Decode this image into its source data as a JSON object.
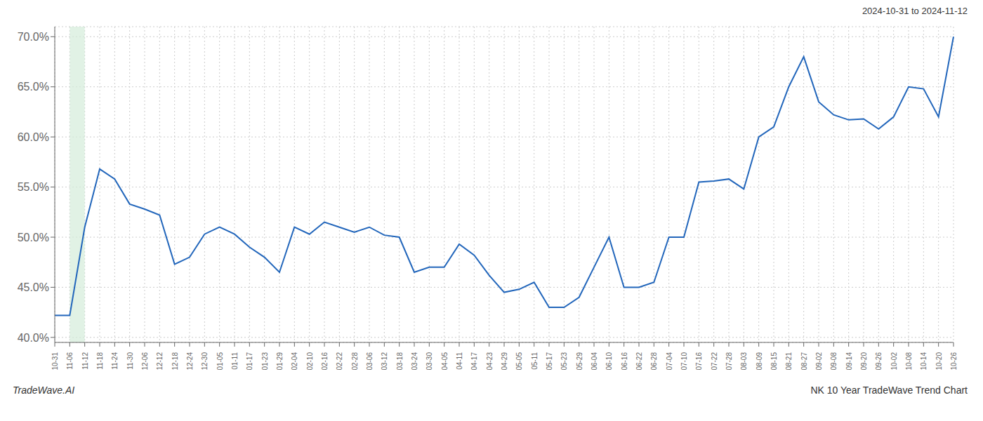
{
  "chart_data": {
    "type": "line",
    "title": "NK 10 Year TradeWave Trend Chart",
    "subtitle": "2024-10-31 to 2024-11-12",
    "annotations": [
      "TradeWave.AI"
    ],
    "categories": [
      "10-31",
      "11-06",
      "11-12",
      "11-18",
      "11-24",
      "11-30",
      "12-06",
      "12-12",
      "12-18",
      "12-24",
      "12-30",
      "01-05",
      "01-11",
      "01-17",
      "01-23",
      "01-29",
      "02-04",
      "02-10",
      "02-16",
      "02-22",
      "02-28",
      "03-06",
      "03-12",
      "03-18",
      "03-24",
      "03-30",
      "04-05",
      "04-11",
      "04-17",
      "04-23",
      "04-29",
      "05-05",
      "05-11",
      "05-17",
      "05-23",
      "05-29",
      "06-04",
      "06-10",
      "06-16",
      "06-22",
      "06-28",
      "07-04",
      "07-10",
      "07-16",
      "07-22",
      "07-28",
      "08-03",
      "08-09",
      "08-15",
      "08-21",
      "08-27",
      "09-02",
      "09-08",
      "09-14",
      "09-20",
      "09-26",
      "10-02",
      "10-08",
      "10-14",
      "10-20",
      "10-26"
    ],
    "values": [
      0.422,
      0.422,
      0.51,
      0.568,
      0.558,
      0.533,
      0.528,
      0.522,
      0.473,
      0.48,
      0.503,
      0.51,
      0.503,
      0.49,
      0.48,
      0.465,
      0.51,
      0.503,
      0.515,
      0.51,
      0.505,
      0.51,
      0.502,
      0.5,
      0.465,
      0.47,
      0.47,
      0.493,
      0.482,
      0.462,
      0.445,
      0.448,
      0.455,
      0.43,
      0.43,
      0.44,
      0.47,
      0.5,
      0.45,
      0.45,
      0.455,
      0.5,
      0.5,
      0.555,
      0.556,
      0.558,
      0.548,
      0.6,
      0.61,
      0.65,
      0.68,
      0.635,
      0.622,
      0.617,
      0.618,
      0.608,
      0.62,
      0.65,
      0.648,
      0.62,
      0.7
    ],
    "color": "#2266bb",
    "highlight": {
      "x": [
        "11-06",
        "11-12"
      ],
      "color": "#d4edda"
    },
    "ylim": [
      0.395,
      0.71
    ],
    "yticks": [
      {
        "value": 0.4,
        "label": "40.0%"
      },
      {
        "value": 0.45,
        "label": "45.0%"
      },
      {
        "value": 0.5,
        "label": "50.0%"
      },
      {
        "value": 0.55,
        "label": "55.0%"
      },
      {
        "value": 0.6,
        "label": "60.0%"
      },
      {
        "value": 0.65,
        "label": "65.0%"
      },
      {
        "value": 0.7,
        "label": "70.0%"
      }
    ],
    "grid": true
  }
}
